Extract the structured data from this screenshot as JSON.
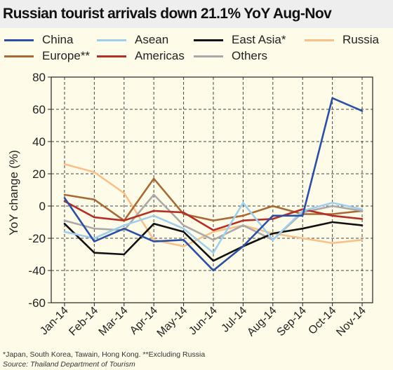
{
  "title": "Russian tourist arrivals down 21.1% YoY Aug-Nov",
  "footnote": "*Japan, South Korea, Tawain, Hong Kong. **Excluding Russia",
  "source": "Source: Thailand Department of Tourism",
  "chart_data": {
    "type": "line",
    "title": "Russian tourist arrivals down 21.1% YoY Aug-Nov",
    "xlabel": "",
    "ylabel": "YoY change (%)",
    "ylim": [
      -60,
      80
    ],
    "yticks": [
      -60,
      -40,
      -20,
      0,
      20,
      40,
      60,
      80
    ],
    "grid": true,
    "legend_position": "top",
    "categories": [
      "Jan-14",
      "Feb-14",
      "Mar-14",
      "Apr-14",
      "May-14",
      "Jun-14",
      "Jul-14",
      "Aug-14",
      "Sep-14",
      "Oct-14",
      "Nov-14"
    ],
    "series": [
      {
        "name": "China",
        "color": "#2b4fa2",
        "values": [
          5,
          -22,
          -14,
          -22,
          -21,
          -40,
          -25,
          -6,
          -6,
          67,
          59
        ]
      },
      {
        "name": "Asean",
        "color": "#9fcfee",
        "values": [
          -16,
          -20,
          -12,
          -6,
          -14,
          -29,
          2,
          -21,
          -3,
          2,
          -2
        ]
      },
      {
        "name": "East Asia*",
        "color": "#111111",
        "values": [
          -11,
          -29,
          -30,
          -11,
          -16,
          -34,
          -25,
          -17,
          -14,
          -10,
          -12
        ]
      },
      {
        "name": "Russia",
        "color": "#f8c189",
        "values": [
          26,
          21,
          8,
          -21,
          -25,
          -16,
          -12,
          -17,
          -20,
          -23,
          -21
        ]
      },
      {
        "name": "Europe**",
        "color": "#a86a35",
        "values": [
          7,
          4,
          -9,
          17,
          -5,
          -9,
          -6,
          0,
          -5,
          -5,
          -3
        ]
      },
      {
        "name": "Americas",
        "color": "#b33026",
        "values": [
          3,
          -7,
          -9,
          -3,
          -4,
          -15,
          -9,
          -8,
          -2,
          -6,
          -8
        ]
      },
      {
        "name": "Others",
        "color": "#a9a9a9",
        "values": [
          -9,
          -14,
          -15,
          7,
          -12,
          -21,
          -12,
          -21,
          -4,
          0,
          -3
        ]
      }
    ]
  }
}
